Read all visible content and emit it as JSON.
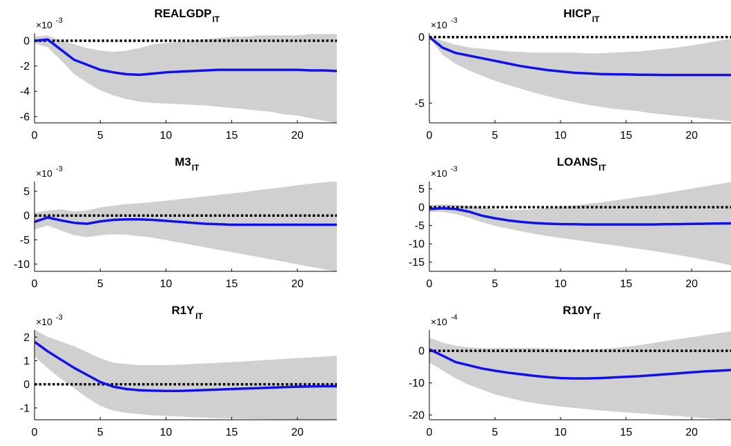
{
  "colors": {
    "band": "#d0d0d0",
    "response_line": "#0f0ff0",
    "zero_line": "#000000",
    "axis": "#000000",
    "background": "#ffffff"
  },
  "chart_data": [
    {
      "type": "area",
      "title": "REALGDP",
      "title_subscript": "IT",
      "exponent_label": "×10",
      "exponent_power": "-3",
      "xlim": [
        0,
        23
      ],
      "ylim": [
        -6.5,
        0.6
      ],
      "xticks": [
        0,
        5,
        10,
        15,
        20
      ],
      "xtick_labels": [
        "0",
        "5",
        "10",
        "15",
        "20"
      ],
      "yticks": [
        -6,
        -4,
        -2,
        0
      ],
      "ytick_labels": [
        "-6",
        "-4",
        "-2",
        "0"
      ],
      "zero_line": true,
      "x": [
        0,
        1,
        2,
        3,
        4,
        5,
        6,
        7,
        8,
        9,
        10,
        11,
        12,
        13,
        14,
        15,
        16,
        17,
        18,
        19,
        20,
        21,
        22,
        23
      ],
      "series": [
        {
          "role": "upper",
          "values": [
            0.3,
            0.4,
            0.0,
            -0.3,
            -0.6,
            -0.8,
            -0.9,
            -0.8,
            -0.6,
            -0.3,
            -0.2,
            -0.1,
            0.0,
            0.1,
            0.2,
            0.3,
            0.3,
            0.4,
            0.4,
            0.4,
            0.4,
            0.5,
            0.5,
            0.5
          ]
        },
        {
          "role": "median",
          "values": [
            0.0,
            0.1,
            -0.7,
            -1.5,
            -1.9,
            -2.3,
            -2.5,
            -2.65,
            -2.7,
            -2.6,
            -2.5,
            -2.45,
            -2.4,
            -2.35,
            -2.3,
            -2.3,
            -2.3,
            -2.3,
            -2.3,
            -2.3,
            -2.3,
            -2.35,
            -2.35,
            -2.4
          ]
        },
        {
          "role": "lower",
          "values": [
            -0.2,
            -0.5,
            -1.5,
            -2.6,
            -3.3,
            -3.9,
            -4.3,
            -4.6,
            -4.8,
            -4.9,
            -4.95,
            -5.0,
            -5.05,
            -5.1,
            -5.2,
            -5.3,
            -5.4,
            -5.5,
            -5.6,
            -5.8,
            -5.9,
            -6.1,
            -6.3,
            -6.5
          ]
        }
      ]
    },
    {
      "type": "area",
      "title": "HICP",
      "title_subscript": "IT",
      "exponent_label": "×10",
      "exponent_power": "-3",
      "xlim": [
        0,
        23
      ],
      "ylim": [
        -6.5,
        0.3
      ],
      "xticks": [
        0,
        5,
        10,
        15,
        20
      ],
      "xtick_labels": [
        "0",
        "5",
        "10",
        "15",
        "20"
      ],
      "yticks": [
        -5,
        0
      ],
      "ytick_labels": [
        "-5",
        "0"
      ],
      "zero_line": true,
      "x": [
        0,
        1,
        2,
        3,
        4,
        5,
        6,
        7,
        8,
        9,
        10,
        11,
        12,
        13,
        14,
        15,
        16,
        17,
        18,
        19,
        20,
        21,
        22,
        23
      ],
      "series": [
        {
          "role": "upper",
          "values": [
            0.0,
            -0.3,
            -0.6,
            -0.8,
            -0.9,
            -1.0,
            -1.1,
            -1.15,
            -1.2,
            -1.2,
            -1.2,
            -1.2,
            -1.25,
            -1.25,
            -1.2,
            -1.15,
            -1.1,
            -1.0,
            -0.9,
            -0.8,
            -0.65,
            -0.5,
            -0.3,
            -0.15
          ]
        },
        {
          "role": "median",
          "values": [
            0.0,
            -0.8,
            -1.2,
            -1.4,
            -1.6,
            -1.8,
            -2.0,
            -2.2,
            -2.35,
            -2.5,
            -2.6,
            -2.7,
            -2.75,
            -2.8,
            -2.82,
            -2.83,
            -2.85,
            -2.86,
            -2.87,
            -2.87,
            -2.87,
            -2.87,
            -2.87,
            -2.87
          ]
        },
        {
          "role": "lower",
          "values": [
            0.0,
            -1.3,
            -2.0,
            -2.5,
            -2.9,
            -3.3,
            -3.6,
            -3.9,
            -4.2,
            -4.45,
            -4.7,
            -4.9,
            -5.1,
            -5.25,
            -5.4,
            -5.5,
            -5.6,
            -5.75,
            -5.85,
            -5.95,
            -6.05,
            -6.15,
            -6.25,
            -6.35
          ]
        }
      ]
    },
    {
      "type": "area",
      "title": "M3",
      "title_subscript": "IT",
      "exponent_label": "×10",
      "exponent_power": "-3",
      "xlim": [
        0,
        23
      ],
      "ylim": [
        -11.5,
        7.0
      ],
      "xticks": [
        0,
        5,
        10,
        15,
        20
      ],
      "xtick_labels": [
        "0",
        "5",
        "10",
        "15",
        "20"
      ],
      "yticks": [
        -10,
        -5,
        0,
        5
      ],
      "ytick_labels": [
        "-10",
        "-5",
        "0",
        "5"
      ],
      "zero_line": true,
      "x": [
        0,
        1,
        2,
        3,
        4,
        5,
        6,
        7,
        8,
        9,
        10,
        11,
        12,
        13,
        14,
        15,
        16,
        17,
        18,
        19,
        20,
        21,
        22,
        23
      ],
      "series": [
        {
          "role": "upper",
          "values": [
            0.5,
            1.0,
            1.2,
            0.8,
            1.0,
            1.6,
            2.0,
            2.3,
            2.5,
            2.7,
            3.0,
            3.3,
            3.6,
            3.9,
            4.2,
            4.5,
            4.8,
            5.2,
            5.5,
            5.8,
            6.2,
            6.5,
            6.8,
            7.0
          ]
        },
        {
          "role": "median",
          "values": [
            -1.3,
            -0.4,
            -1.0,
            -1.5,
            -1.7,
            -1.2,
            -0.9,
            -0.8,
            -0.8,
            -0.9,
            -1.1,
            -1.3,
            -1.5,
            -1.7,
            -1.8,
            -1.9,
            -1.9,
            -1.9,
            -1.9,
            -1.9,
            -1.9,
            -1.9,
            -1.9,
            -1.9
          ]
        },
        {
          "role": "lower",
          "values": [
            -2.8,
            -2.0,
            -3.0,
            -4.0,
            -4.4,
            -4.0,
            -3.8,
            -3.9,
            -4.2,
            -4.5,
            -5.0,
            -5.5,
            -6.0,
            -6.5,
            -7.0,
            -7.5,
            -8.0,
            -8.5,
            -9.0,
            -9.5,
            -10.0,
            -10.5,
            -11.0,
            -11.5
          ]
        }
      ]
    },
    {
      "type": "area",
      "title": "LOANS",
      "title_subscript": "IT",
      "exponent_label": "×10",
      "exponent_power": "-3",
      "xlim": [
        0,
        23
      ],
      "ylim": [
        -17.5,
        7.0
      ],
      "xticks": [
        0,
        5,
        10,
        15,
        20
      ],
      "xtick_labels": [
        "0",
        "5",
        "10",
        "15",
        "20"
      ],
      "yticks": [
        -15,
        -10,
        -5,
        0,
        5
      ],
      "ytick_labels": [
        "-15",
        "-10",
        "-5",
        "0",
        "5"
      ],
      "zero_line": true,
      "x": [
        0,
        1,
        2,
        3,
        4,
        5,
        6,
        7,
        8,
        9,
        10,
        11,
        12,
        13,
        14,
        15,
        16,
        17,
        18,
        19,
        20,
        21,
        22,
        23
      ],
      "series": [
        {
          "role": "upper",
          "values": [
            0.5,
            0.7,
            0.6,
            0.3,
            -0.2,
            -0.6,
            -0.8,
            -0.8,
            -0.6,
            -0.3,
            0.0,
            0.4,
            0.8,
            1.2,
            1.7,
            2.2,
            2.7,
            3.2,
            3.8,
            4.4,
            5.0,
            5.6,
            6.2,
            6.8
          ]
        },
        {
          "role": "median",
          "values": [
            -0.5,
            -0.3,
            -0.5,
            -1.2,
            -2.3,
            -3.0,
            -3.6,
            -4.0,
            -4.3,
            -4.5,
            -4.6,
            -4.65,
            -4.7,
            -4.7,
            -4.7,
            -4.7,
            -4.7,
            -4.7,
            -4.65,
            -4.6,
            -4.55,
            -4.5,
            -4.45,
            -4.4
          ]
        },
        {
          "role": "lower",
          "values": [
            -1.2,
            -1.2,
            -1.8,
            -2.8,
            -4.0,
            -5.0,
            -5.8,
            -6.5,
            -7.2,
            -7.8,
            -8.3,
            -8.8,
            -9.3,
            -9.8,
            -10.3,
            -10.8,
            -11.3,
            -11.8,
            -12.4,
            -13.0,
            -13.6,
            -14.3,
            -15.0,
            -15.8
          ]
        }
      ]
    },
    {
      "type": "area",
      "title": "R1Y",
      "title_subscript": "IT",
      "exponent_label": "×10",
      "exponent_power": "-3",
      "xlim": [
        0,
        23
      ],
      "ylim": [
        -1.5,
        2.3
      ],
      "xticks": [
        0,
        5,
        10,
        15,
        20
      ],
      "xtick_labels": [
        "0",
        "5",
        "10",
        "15",
        "20"
      ],
      "yticks": [
        -1,
        0,
        1,
        2
      ],
      "ytick_labels": [
        "-1",
        "0",
        "1",
        "2"
      ],
      "zero_line": true,
      "x": [
        0,
        1,
        2,
        3,
        4,
        5,
        6,
        7,
        8,
        9,
        10,
        11,
        12,
        13,
        14,
        15,
        16,
        17,
        18,
        19,
        20,
        21,
        22,
        23
      ],
      "series": [
        {
          "role": "upper",
          "values": [
            2.3,
            2.0,
            1.8,
            1.6,
            1.35,
            1.1,
            0.9,
            0.85,
            0.8,
            0.8,
            0.8,
            0.82,
            0.85,
            0.88,
            0.9,
            0.93,
            0.96,
            1.0,
            1.03,
            1.07,
            1.1,
            1.13,
            1.16,
            1.2
          ]
        },
        {
          "role": "median",
          "values": [
            1.8,
            1.4,
            1.05,
            0.7,
            0.4,
            0.1,
            -0.1,
            -0.2,
            -0.25,
            -0.27,
            -0.28,
            -0.28,
            -0.26,
            -0.24,
            -0.22,
            -0.2,
            -0.18,
            -0.16,
            -0.14,
            -0.12,
            -0.1,
            -0.09,
            -0.08,
            -0.08
          ]
        },
        {
          "role": "lower",
          "values": [
            1.2,
            0.7,
            0.25,
            -0.15,
            -0.55,
            -0.9,
            -1.1,
            -1.2,
            -1.25,
            -1.3,
            -1.32,
            -1.35,
            -1.38,
            -1.4,
            -1.42,
            -1.44,
            -1.45,
            -1.46,
            -1.47,
            -1.48,
            -1.49,
            -1.5,
            -1.5,
            -1.5
          ]
        }
      ]
    },
    {
      "type": "area",
      "title": "R10Y",
      "title_subscript": "IT",
      "exponent_label": "×10",
      "exponent_power": "-4",
      "xlim": [
        0,
        23
      ],
      "ylim": [
        -21.5,
        6.5
      ],
      "xticks": [
        0,
        5,
        10,
        15,
        20
      ],
      "xtick_labels": [
        "0",
        "5",
        "10",
        "15",
        "20"
      ],
      "yticks": [
        -20,
        -10,
        0
      ],
      "ytick_labels": [
        "-20",
        "-10",
        "0"
      ],
      "zero_line": true,
      "x": [
        0,
        1,
        2,
        3,
        4,
        5,
        6,
        7,
        8,
        9,
        10,
        11,
        12,
        13,
        14,
        15,
        16,
        17,
        18,
        19,
        20,
        21,
        22,
        23
      ],
      "series": [
        {
          "role": "upper",
          "values": [
            4.0,
            2.5,
            1.5,
            1.0,
            0.8,
            0.8,
            0.8,
            0.8,
            0.8,
            0.7,
            0.5,
            0.3,
            0.3,
            0.5,
            0.8,
            1.2,
            1.7,
            2.3,
            3.0,
            3.6,
            4.2,
            4.8,
            5.4,
            6.0
          ]
        },
        {
          "role": "median",
          "values": [
            0.5,
            -1.5,
            -3.5,
            -4.5,
            -5.5,
            -6.2,
            -6.8,
            -7.3,
            -7.8,
            -8.2,
            -8.5,
            -8.6,
            -8.6,
            -8.5,
            -8.3,
            -8.1,
            -7.9,
            -7.6,
            -7.3,
            -7.0,
            -6.7,
            -6.4,
            -6.2,
            -6.0
          ]
        },
        {
          "role": "lower",
          "values": [
            -3.5,
            -6.0,
            -8.5,
            -10.5,
            -12.0,
            -13.5,
            -14.5,
            -15.5,
            -16.2,
            -16.8,
            -17.3,
            -17.7,
            -18.1,
            -18.5,
            -18.8,
            -19.1,
            -19.4,
            -19.7,
            -20.0,
            -20.3,
            -20.6,
            -20.9,
            -21.2,
            -21.5
          ]
        }
      ]
    }
  ]
}
